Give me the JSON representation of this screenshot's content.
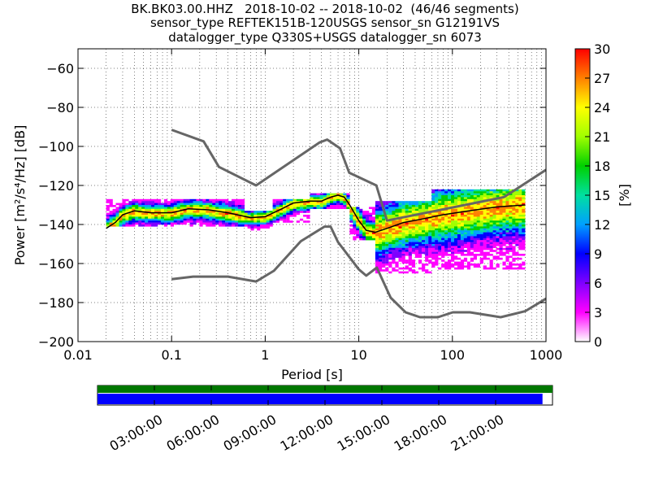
{
  "title_lines": [
    "BK.BK03.00.HHZ   2018-10-02 -- 2018-10-02  (46/46 segments)",
    "sensor_type REFTEK151B-120USGS sensor_sn G12191VS",
    "datalogger_type Q330S+USGS datalogger_sn 6073"
  ],
  "colors": {
    "noise_model": "#666666",
    "mode_line": "#000000",
    "coverage_green": "#007700",
    "coverage_blue": "#0000ff",
    "colormap": [
      "#ffffff",
      "#ff00ff",
      "#7f00ff",
      "#0000ff",
      "#00a0ff",
      "#00e0a0",
      "#00d000",
      "#a0ff00",
      "#ffff00",
      "#ff8000",
      "#ff0000"
    ]
  },
  "chart_data": {
    "type": "heatmap",
    "title": "BK.BK03.00.HHZ   2018-10-02 -- 2018-10-02  (46/46 segments)",
    "xlabel": "Period [s]",
    "ylabel": "Power [m²/s⁴/Hz] [dB]",
    "x_scale": "log",
    "xlim": [
      0.01,
      1000
    ],
    "ylim": [
      -200,
      -50
    ],
    "x_tick_labels": [
      "0.01",
      "0.1",
      "1",
      "10",
      "100",
      "1000"
    ],
    "x_tick_values": [
      0.01,
      0.1,
      1,
      10,
      100,
      1000
    ],
    "y_ticks": [
      -60,
      -80,
      -100,
      -120,
      -140,
      -160,
      -180,
      -200
    ],
    "grid": true,
    "colorbar": {
      "label": "[%]",
      "range": [
        0,
        30
      ],
      "ticks": [
        0,
        3,
        6,
        9,
        12,
        15,
        18,
        21,
        24,
        27,
        30
      ]
    },
    "series": [
      {
        "name": "",
        "role": "high-noise-model",
        "x": [
          0.1,
          0.22,
          0.32,
          0.8,
          3.8,
          4.6,
          6.3,
          7.9,
          15.4,
          20,
          354.8,
          1000
        ],
        "y": [
          -91.5,
          -97.4,
          -110.5,
          -120,
          -98,
          -96.5,
          -101,
          -113.5,
          -120,
          -138,
          -126,
          -112
        ]
      },
      {
        "name": "",
        "role": "low-noise-model",
        "x": [
          0.1,
          0.17,
          0.4,
          0.8,
          1.24,
          2.4,
          4.3,
          5,
          6,
          10,
          12,
          15.6,
          21.9,
          31.6,
          45,
          70,
          101,
          154,
          328,
          600,
          1000
        ],
        "y": [
          -168,
          -166.7,
          -166.7,
          -169.2,
          -163.7,
          -148.6,
          -141.1,
          -141.1,
          -149,
          -163,
          -166.2,
          -162.1,
          -177.5,
          -185,
          -187.5,
          -187.5,
          -185,
          -185,
          -187.5,
          -184.4,
          -178
        ]
      },
      {
        "name": "",
        "role": "mode",
        "x": [
          0.02,
          0.025,
          0.03,
          0.04,
          0.06,
          0.1,
          0.15,
          0.25,
          0.4,
          0.7,
          1,
          1.5,
          2,
          3,
          4,
          5,
          6,
          7,
          8,
          10,
          12,
          15,
          20,
          30,
          50,
          80,
          150,
          300,
          600
        ],
        "y": [
          -142,
          -139,
          -135,
          -133,
          -134,
          -134,
          -132,
          -132.5,
          -134,
          -136.5,
          -136,
          -132,
          -129,
          -128,
          -128,
          -126,
          -125,
          -126,
          -130,
          -138,
          -143,
          -144,
          -142,
          -139,
          -137,
          -135,
          -133,
          -131,
          -130
        ]
      }
    ],
    "density_bands": [
      {
        "x_start": 0.02,
        "x_end": 0.6,
        "y_low": -140,
        "y_high": -127
      },
      {
        "x_start": 0.6,
        "x_end": 1.2,
        "y_low": -142,
        "y_high": -133
      },
      {
        "x_start": 1.2,
        "x_end": 3,
        "y_low": -138,
        "y_high": -127
      },
      {
        "x_start": 3,
        "x_end": 8,
        "y_low": -131,
        "y_high": -124
      },
      {
        "x_start": 8,
        "x_end": 15,
        "y_low": -147,
        "y_high": -131
      },
      {
        "x_start": 15,
        "x_end": 60,
        "y_low": -164,
        "y_high": -128
      },
      {
        "x_start": 60,
        "x_end": 700,
        "y_low": -162,
        "y_high": -122
      }
    ]
  },
  "coverage": {
    "time_labels": [
      "03:00:00",
      "06:00:00",
      "09:00:00",
      "12:00:00",
      "15:00:00",
      "18:00:00",
      "21:00:00"
    ],
    "data_fraction": 0.978,
    "gap_fraction": 0
  }
}
